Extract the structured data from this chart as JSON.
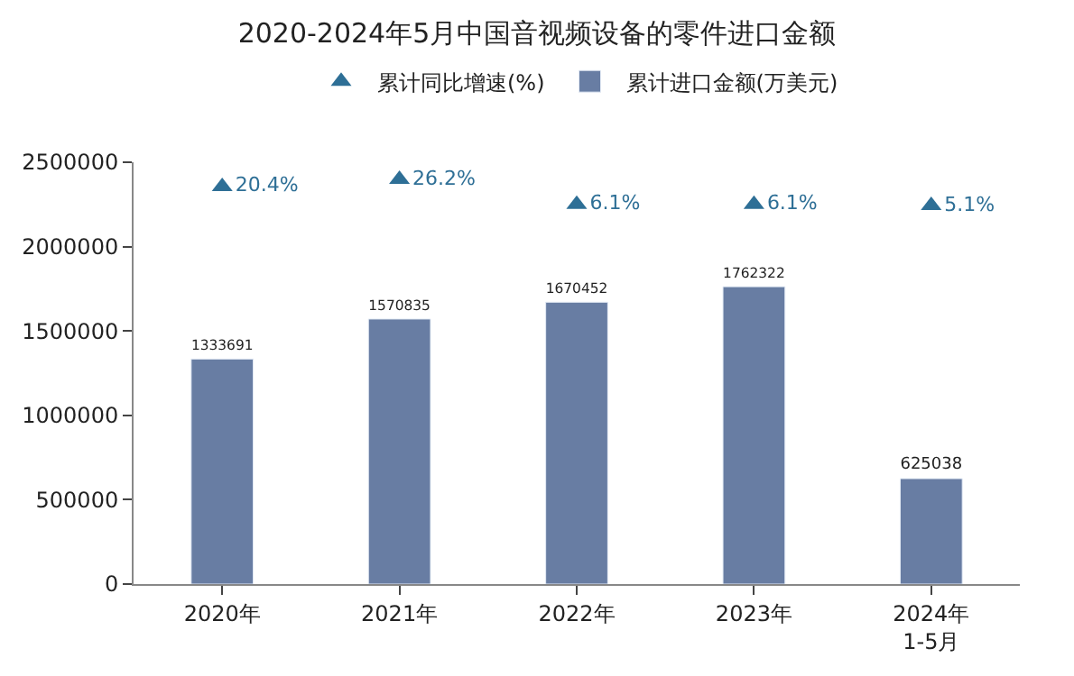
{
  "chart_data": {
    "type": "bar",
    "title": "2020-2024年5月中国音视频设备的零件进口金额",
    "categories": [
      "2020年",
      "2021年",
      "2022年",
      "2023年",
      "2024年\n1-5月"
    ],
    "series": [
      {
        "name": "累计同比增速(%)",
        "type": "scatter",
        "axis": "y2",
        "color": "#2e6f96",
        "marker": "triangle",
        "values": [
          20.4,
          26.2,
          6.1,
          6.1,
          5.1
        ],
        "value_labels": [
          "20.4%",
          "26.2%",
          "6.1%",
          "6.1%",
          "5.1%"
        ]
      },
      {
        "name": "累计进口金额(万美元)",
        "color": "#687da3",
        "values": [
          1333691,
          1570835,
          1670452,
          1762322,
          625038
        ],
        "data_labels": true
      }
    ],
    "ylim": [
      0,
      2500000
    ],
    "yticks": [
      0,
      500000,
      1000000,
      1500000,
      2000000,
      2500000
    ],
    "y2lim": [
      -300,
      40
    ],
    "legend": "top"
  }
}
